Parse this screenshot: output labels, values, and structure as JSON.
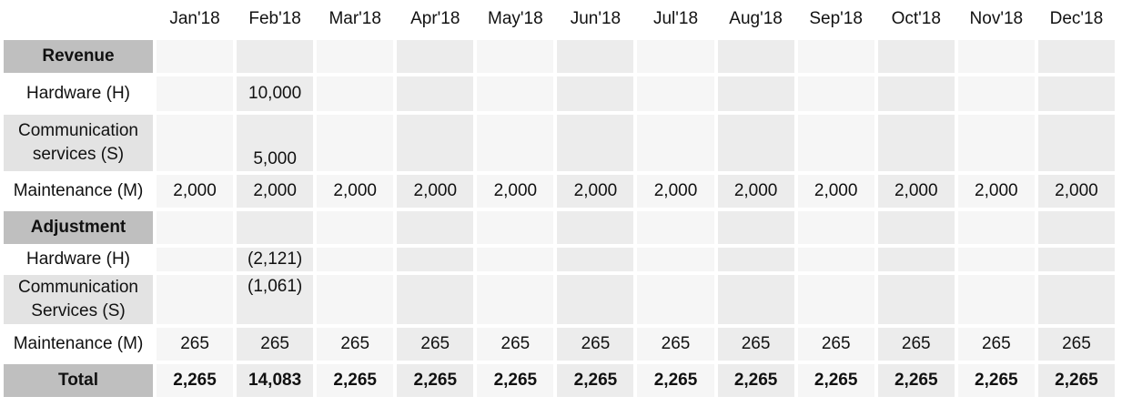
{
  "table": {
    "months": [
      "Jan'18",
      "Feb'18",
      "Mar'18",
      "Apr'18",
      "May'18",
      "Jun'18",
      "Jul'18",
      "Aug'18",
      "Sep'18",
      "Oct'18",
      "Nov'18",
      "Dec'18"
    ],
    "rows": [
      {
        "label": "Revenue",
        "section": true
      },
      {
        "label": "Hardware (H)",
        "cells": [
          null,
          "10,000",
          null,
          null,
          null,
          null,
          null,
          null,
          null,
          null,
          null,
          null
        ]
      },
      {
        "label": "Communication services (S)",
        "cells": [
          null,
          "5,000",
          null,
          null,
          null,
          null,
          null,
          null,
          null,
          null,
          null,
          null
        ]
      },
      {
        "label": "Maintenance (M)",
        "cells": [
          "2,000",
          "2,000",
          "2,000",
          "2,000",
          "2,000",
          "2,000",
          "2,000",
          "2,000",
          "2,000",
          "2,000",
          "2,000",
          "2,000"
        ]
      },
      {
        "label": "Adjustment",
        "section": true
      },
      {
        "label": "Hardware (H)",
        "cells": [
          null,
          "(2,121)",
          null,
          null,
          null,
          null,
          null,
          null,
          null,
          null,
          null,
          null
        ]
      },
      {
        "label": "Communication Services (S)",
        "cells": [
          null,
          "(1,061)",
          null,
          null,
          null,
          null,
          null,
          null,
          null,
          null,
          null,
          null
        ]
      },
      {
        "label": "Maintenance (M)",
        "cells": [
          "265",
          "265",
          "265",
          "265",
          "265",
          "265",
          "265",
          "265",
          "265",
          "265",
          "265",
          "265"
        ]
      },
      {
        "label": "Total",
        "section": true,
        "bold": true,
        "cells": [
          "2,265",
          "14,083",
          "2,265",
          "2,265",
          "2,265",
          "2,265",
          "2,265",
          "2,265",
          "2,265",
          "2,265",
          "2,265",
          "2,265"
        ]
      }
    ]
  }
}
